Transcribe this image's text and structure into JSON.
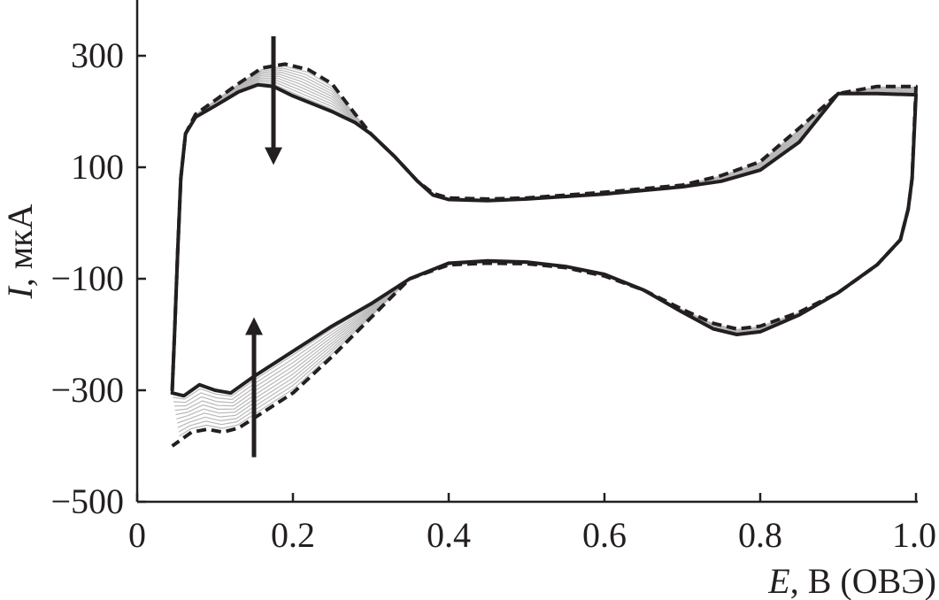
{
  "chart_data": {
    "type": "line",
    "title": "",
    "xlabel": {
      "var": "E",
      "unit": ", В (ОВЭ)"
    },
    "ylabel": {
      "var": "I",
      "unit": ", мкА"
    },
    "xlim": [
      0,
      1.0
    ],
    "ylim": [
      -500,
      400
    ],
    "x_ticks": [
      0,
      0.2,
      0.4,
      0.6,
      0.8,
      1.0
    ],
    "x_tick_labels": [
      "0",
      "0.2",
      "0.4",
      "0.6",
      "0.8",
      "1.0"
    ],
    "y_ticks": [
      -500,
      -300,
      -100,
      100,
      300
    ],
    "y_tick_labels": [
      "−500",
      "−300",
      "−100",
      "100",
      "300"
    ],
    "grid": false,
    "colors": {
      "axis": "#231f20",
      "first_cycle": "#231f20",
      "last_cycle": "#231f20",
      "intermediate_cycles": "#b8b8b8"
    },
    "intermediate_cycle_count": 10,
    "series": [
      {
        "style": "dashed",
        "role": "first-cycle",
        "anodic": [
          [
            0.045,
            -300
          ],
          [
            0.048,
            -200
          ],
          [
            0.052,
            -50
          ],
          [
            0.056,
            80
          ],
          [
            0.062,
            160
          ],
          [
            0.075,
            195
          ],
          [
            0.1,
            220
          ],
          [
            0.13,
            250
          ],
          [
            0.16,
            278
          ],
          [
            0.19,
            285
          ],
          [
            0.22,
            275
          ],
          [
            0.25,
            250
          ],
          [
            0.28,
            195
          ],
          [
            0.3,
            160
          ],
          [
            0.33,
            120
          ],
          [
            0.36,
            75
          ],
          [
            0.38,
            53
          ],
          [
            0.4,
            45
          ],
          [
            0.45,
            43
          ],
          [
            0.5,
            45
          ],
          [
            0.6,
            55
          ],
          [
            0.7,
            68
          ],
          [
            0.75,
            85
          ],
          [
            0.8,
            110
          ],
          [
            0.85,
            170
          ],
          [
            0.9,
            232
          ],
          [
            0.95,
            245
          ],
          [
            1.0,
            245
          ]
        ],
        "cathodic": [
          [
            1.0,
            245
          ],
          [
            0.995,
            80
          ],
          [
            0.99,
            25
          ],
          [
            0.98,
            -30
          ],
          [
            0.95,
            -75
          ],
          [
            0.9,
            -125
          ],
          [
            0.85,
            -160
          ],
          [
            0.8,
            -185
          ],
          [
            0.77,
            -190
          ],
          [
            0.74,
            -180
          ],
          [
            0.7,
            -155
          ],
          [
            0.65,
            -120
          ],
          [
            0.6,
            -95
          ],
          [
            0.55,
            -80
          ],
          [
            0.5,
            -73
          ],
          [
            0.45,
            -72
          ],
          [
            0.4,
            -75
          ],
          [
            0.35,
            -100
          ],
          [
            0.3,
            -170
          ],
          [
            0.25,
            -240
          ],
          [
            0.2,
            -305
          ],
          [
            0.15,
            -350
          ],
          [
            0.13,
            -368
          ],
          [
            0.11,
            -375
          ],
          [
            0.09,
            -370
          ],
          [
            0.07,
            -375
          ],
          [
            0.055,
            -390
          ],
          [
            0.045,
            -400
          ]
        ]
      },
      {
        "style": "solid",
        "role": "last-cycle",
        "anodic": [
          [
            0.045,
            -300
          ],
          [
            0.048,
            -200
          ],
          [
            0.052,
            -50
          ],
          [
            0.056,
            80
          ],
          [
            0.062,
            160
          ],
          [
            0.075,
            190
          ],
          [
            0.1,
            210
          ],
          [
            0.13,
            235
          ],
          [
            0.155,
            248
          ],
          [
            0.175,
            245
          ],
          [
            0.2,
            228
          ],
          [
            0.25,
            200
          ],
          [
            0.28,
            180
          ],
          [
            0.3,
            160
          ],
          [
            0.33,
            120
          ],
          [
            0.36,
            75
          ],
          [
            0.38,
            50
          ],
          [
            0.4,
            42
          ],
          [
            0.45,
            40
          ],
          [
            0.5,
            43
          ],
          [
            0.6,
            52
          ],
          [
            0.7,
            65
          ],
          [
            0.75,
            75
          ],
          [
            0.8,
            95
          ],
          [
            0.85,
            145
          ],
          [
            0.9,
            232
          ],
          [
            0.95,
            232
          ],
          [
            1.0,
            230
          ]
        ],
        "cathodic": [
          [
            1.0,
            230
          ],
          [
            0.995,
            80
          ],
          [
            0.99,
            25
          ],
          [
            0.98,
            -30
          ],
          [
            0.95,
            -75
          ],
          [
            0.9,
            -125
          ],
          [
            0.85,
            -165
          ],
          [
            0.8,
            -195
          ],
          [
            0.77,
            -200
          ],
          [
            0.74,
            -190
          ],
          [
            0.7,
            -160
          ],
          [
            0.65,
            -120
          ],
          [
            0.6,
            -92
          ],
          [
            0.55,
            -78
          ],
          [
            0.5,
            -70
          ],
          [
            0.45,
            -68
          ],
          [
            0.4,
            -72
          ],
          [
            0.35,
            -100
          ],
          [
            0.3,
            -145
          ],
          [
            0.25,
            -185
          ],
          [
            0.2,
            -230
          ],
          [
            0.15,
            -275
          ],
          [
            0.12,
            -305
          ],
          [
            0.1,
            -300
          ],
          [
            0.08,
            -290
          ],
          [
            0.06,
            -310
          ],
          [
            0.045,
            -305
          ]
        ]
      }
    ],
    "annotations": [
      {
        "type": "arrow",
        "direction": "down",
        "x": 0.175,
        "y_from": 335,
        "y_to": 120
      },
      {
        "type": "arrow",
        "direction": "up",
        "x": 0.15,
        "y_from": -420,
        "y_to": -185
      }
    ]
  }
}
